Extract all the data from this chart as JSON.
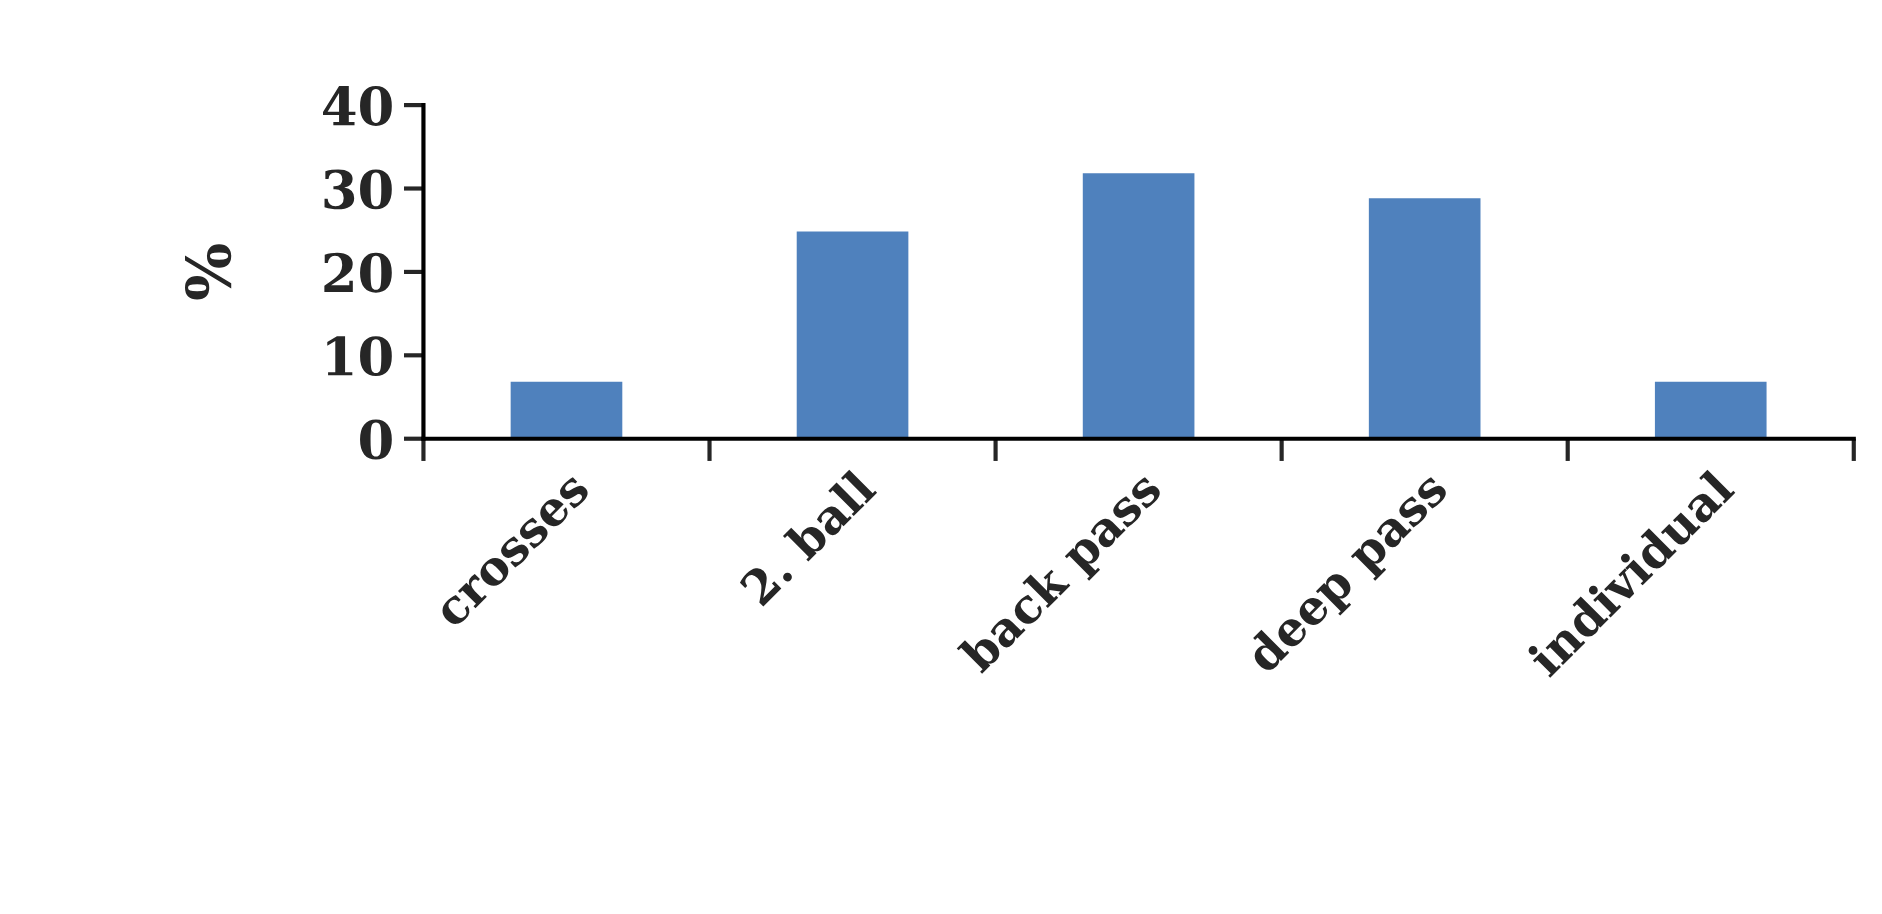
{
  "chart_data": {
    "type": "bar",
    "ylabel": "%",
    "categories": [
      "crosses",
      "2. ball",
      "back pass",
      "deep pass",
      "individual"
    ],
    "values": [
      7,
      25,
      32,
      29,
      7
    ],
    "color": "#4f81bd",
    "ylim": [
      0,
      40
    ],
    "yticks": [
      0,
      10,
      20,
      30,
      40
    ],
    "grid": false,
    "legend": false
  }
}
